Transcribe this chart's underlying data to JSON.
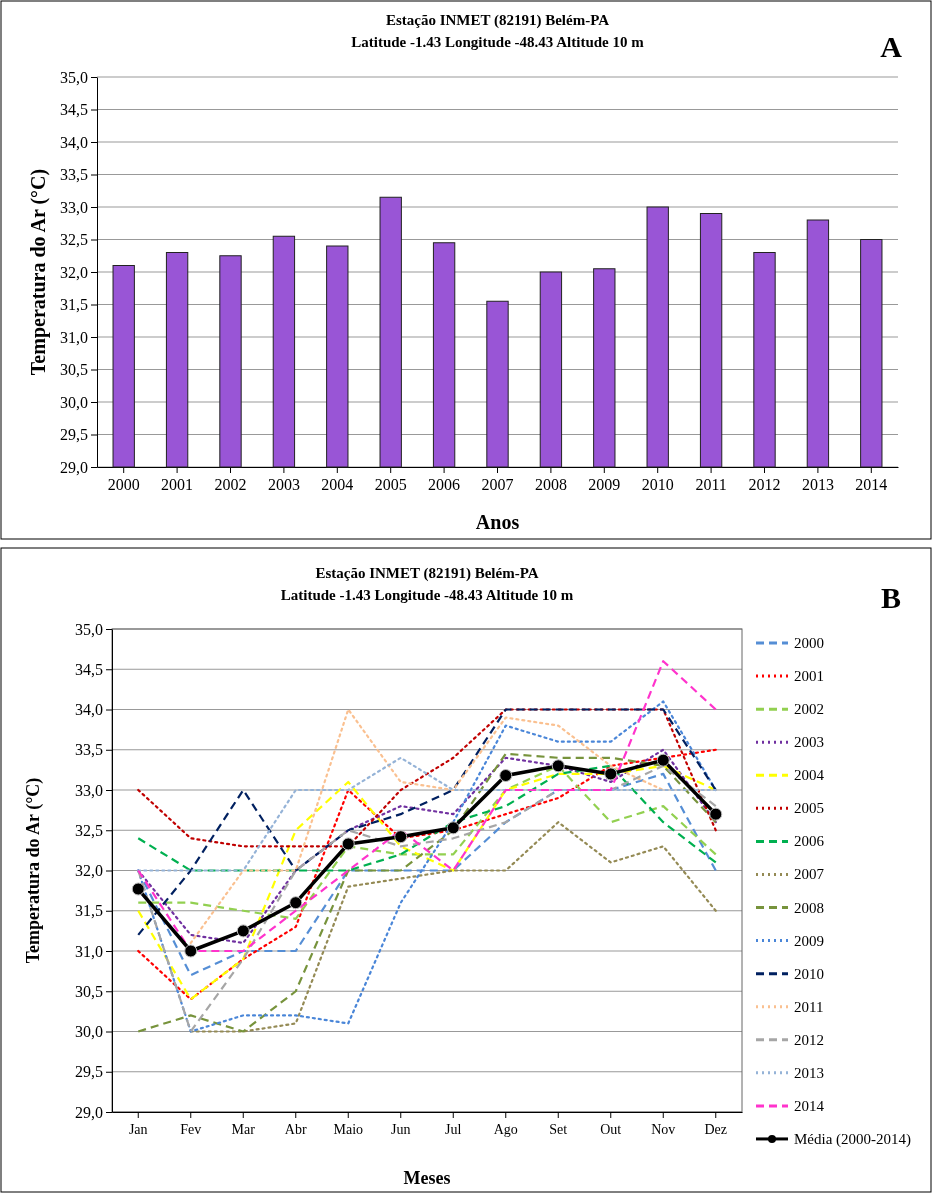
{
  "chart_data": [
    {
      "type": "bar",
      "title": "Estação  INMET (82191) Belém-PA",
      "subtitle": "Latitude -1.43  Longitude -48.43  Altitude 10 m",
      "xlabel": "Anos",
      "ylabel": "Temperatura do Ar (°C)",
      "annotations": [
        "A"
      ],
      "categories": [
        "2000",
        "2001",
        "2002",
        "2003",
        "2004",
        "2005",
        "2006",
        "2007",
        "2008",
        "2009",
        "2010",
        "2011",
        "2012",
        "2013",
        "2014"
      ],
      "values": [
        32.1,
        32.3,
        32.25,
        32.55,
        32.4,
        33.15,
        32.45,
        31.55,
        32.0,
        32.05,
        33.0,
        32.9,
        32.3,
        32.8,
        32.5
      ],
      "color": "#9955d6",
      "ylim": [
        29,
        35
      ],
      "yticks": [
        {
          "value": 29,
          "label": "29,0"
        },
        {
          "value": 29.5,
          "label": "29,5"
        },
        {
          "value": 30,
          "label": "30,0"
        },
        {
          "value": 30.5,
          "label": "30,5"
        },
        {
          "value": 31,
          "label": "31,0"
        },
        {
          "value": 31.5,
          "label": "31,5"
        },
        {
          "value": 32,
          "label": "32,0"
        },
        {
          "value": 32.5,
          "label": "32,5"
        },
        {
          "value": 33,
          "label": "33,0"
        },
        {
          "value": 33.5,
          "label": "33,5"
        },
        {
          "value": 34,
          "label": "34,0"
        },
        {
          "value": 34.5,
          "label": "34,5"
        },
        {
          "value": 35,
          "label": "35,0"
        }
      ],
      "grid": "y",
      "legend": false
    },
    {
      "type": "line",
      "title": "Estação  INMET (82191) Belém-PA",
      "subtitle": "Latitude -1.43  Longitude -48.43  Altitude 10 m",
      "xlabel": "Meses",
      "ylabel": "Temperatura do Ar (°C)",
      "annotations": [
        "B"
      ],
      "categories": [
        "Jan",
        "Fev",
        "Mar",
        "Abr",
        "Maio",
        "Jun",
        "Jul",
        "Ago",
        "Set",
        "Out",
        "Nov",
        "Dez"
      ],
      "series": [
        {
          "name": "2000",
          "color": "#558ed5",
          "line_style": "dashed",
          "values": [
            32.0,
            30.7,
            31.0,
            31.0,
            32.0,
            32.0,
            32.0,
            32.6,
            33.0,
            33.0,
            33.2,
            32.0
          ]
        },
        {
          "name": "2001",
          "color": "#ff0000",
          "line_style": "dotted",
          "values": [
            31.0,
            30.4,
            30.9,
            31.3,
            33.0,
            32.4,
            32.5,
            32.7,
            32.9,
            33.3,
            33.4,
            33.5
          ]
        },
        {
          "name": "2002",
          "color": "#92d050",
          "line_style": "dashed",
          "values": [
            31.6,
            31.6,
            31.5,
            31.4,
            32.3,
            32.2,
            32.2,
            33.0,
            33.3,
            32.6,
            32.8,
            32.2
          ]
        },
        {
          "name": "2003",
          "color": "#7030a0",
          "line_style": "dotted",
          "values": [
            32.0,
            31.2,
            31.1,
            32.0,
            32.5,
            32.8,
            32.7,
            33.4,
            33.3,
            33.1,
            33.5,
            32.6
          ]
        },
        {
          "name": "2004",
          "color": "#ffff00",
          "line_style": "dashed",
          "values": [
            31.5,
            30.4,
            30.9,
            32.5,
            33.1,
            32.3,
            32.0,
            33.0,
            33.2,
            33.2,
            33.3,
            33.0
          ]
        },
        {
          "name": "2005",
          "color": "#c00000",
          "line_style": "dotted",
          "values": [
            33.0,
            32.4,
            32.3,
            32.3,
            32.3,
            33.0,
            33.4,
            34.0,
            34.0,
            34.0,
            34.0,
            32.5
          ]
        },
        {
          "name": "2006",
          "color": "#00b050",
          "line_style": "dashed",
          "values": [
            32.4,
            32.0,
            32.0,
            32.0,
            32.0,
            32.2,
            32.6,
            32.8,
            33.2,
            33.3,
            32.6,
            32.1
          ]
        },
        {
          "name": "2007",
          "color": "#948a54",
          "line_style": "dotted",
          "values": [
            null,
            30.0,
            30.0,
            30.1,
            31.8,
            31.9,
            32.0,
            32.0,
            32.6,
            32.1,
            32.3,
            31.5
          ]
        },
        {
          "name": "2008",
          "color": "#77933c",
          "line_style": "dashed",
          "values": [
            30.0,
            30.2,
            30.0,
            30.5,
            32.0,
            32.0,
            32.5,
            33.45,
            33.4,
            33.4,
            33.3,
            32.6
          ]
        },
        {
          "name": "2009",
          "color": "#4a86d8",
          "line_style": "dotted",
          "values": [
            32.0,
            30.0,
            30.2,
            30.2,
            30.1,
            31.6,
            32.6,
            33.8,
            33.6,
            33.6,
            34.1,
            33.0
          ]
        },
        {
          "name": "2010",
          "color": "#002060",
          "line_style": "dashed",
          "values": [
            31.2,
            32.0,
            33.0,
            32.0,
            32.5,
            32.7,
            33.0,
            34.0,
            34.0,
            34.0,
            34.0,
            33.0
          ]
        },
        {
          "name": "2011",
          "color": "#fac090",
          "line_style": "dotted",
          "values": [
            null,
            31.1,
            32.0,
            32.0,
            34.0,
            33.1,
            33.0,
            33.9,
            33.8,
            33.3,
            33.0,
            33.0
          ]
        },
        {
          "name": "2012",
          "color": "#a6a6a6",
          "line_style": "dashed",
          "values": [
            32.0,
            30.0,
            30.9,
            32.0,
            32.5,
            32.3,
            32.4,
            32.6,
            33.0,
            33.0,
            33.3,
            32.8
          ]
        },
        {
          "name": "2013",
          "color": "#95b3d7",
          "line_style": "dotted",
          "values": [
            32.0,
            32.0,
            32.0,
            33.0,
            33.0,
            33.4,
            33.0,
            33.0,
            33.0,
            33.0,
            33.0,
            33.0
          ]
        },
        {
          "name": "2014",
          "color": "#ff33cc",
          "line_style": "dashed",
          "values": [
            32.0,
            31.0,
            31.0,
            31.5,
            32.0,
            32.5,
            32.0,
            33.0,
            33.0,
            33.0,
            34.6,
            34.0
          ]
        },
        {
          "name": "Média (2000-2014)",
          "color": "#000000",
          "line_style": "solid",
          "marker": "circle",
          "values": [
            31.77,
            31.0,
            31.25,
            31.6,
            32.33,
            32.42,
            32.53,
            33.18,
            33.3,
            33.2,
            33.37,
            32.7
          ]
        }
      ],
      "ylim": [
        29,
        35
      ],
      "yticks": [
        {
          "value": 29,
          "label": "29,0"
        },
        {
          "value": 29.5,
          "label": "29,5"
        },
        {
          "value": 30,
          "label": "30,0"
        },
        {
          "value": 30.5,
          "label": "30,5"
        },
        {
          "value": 31,
          "label": "31,0"
        },
        {
          "value": 31.5,
          "label": "31,5"
        },
        {
          "value": 32,
          "label": "32,0"
        },
        {
          "value": 32.5,
          "label": "32,5"
        },
        {
          "value": 33,
          "label": "33,0"
        },
        {
          "value": 33.5,
          "label": "33,5"
        },
        {
          "value": 34,
          "label": "34,0"
        },
        {
          "value": 34.5,
          "label": "34,5"
        },
        {
          "value": 35,
          "label": "35,0"
        }
      ],
      "grid": "y",
      "legend": "right"
    }
  ]
}
